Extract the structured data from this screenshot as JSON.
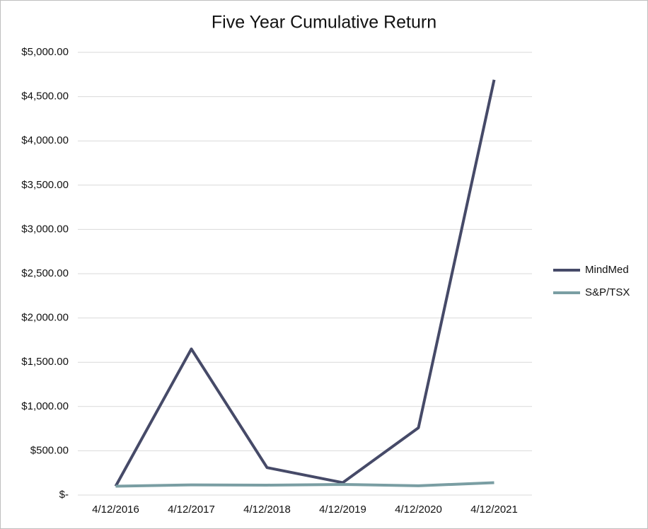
{
  "chart_data": {
    "type": "line",
    "title": "Five Year Cumulative Return",
    "categories": [
      "4/12/2016",
      "4/12/2017",
      "4/12/2018",
      "4/12/2019",
      "4/12/2020",
      "4/12/2021"
    ],
    "series": [
      {
        "name": "MindMed",
        "color": "#464a68",
        "values": [
          100,
          1650,
          310,
          140,
          760,
          4690
        ]
      },
      {
        "name": "S&P/TSX",
        "color": "#7a9ea3",
        "values": [
          100,
          115,
          112,
          120,
          105,
          140
        ]
      }
    ],
    "ylim": [
      0,
      5000
    ],
    "yticks": [
      {
        "value": 0,
        "label": "$-"
      },
      {
        "value": 500,
        "label": "$500.00"
      },
      {
        "value": 1000,
        "label": "$1,000.00"
      },
      {
        "value": 1500,
        "label": "$1,500.00"
      },
      {
        "value": 2000,
        "label": "$2,000.00"
      },
      {
        "value": 2500,
        "label": "$2,500.00"
      },
      {
        "value": 3000,
        "label": "$3,000.00"
      },
      {
        "value": 3500,
        "label": "$3,500.00"
      },
      {
        "value": 4000,
        "label": "$4,000.00"
      },
      {
        "value": 4500,
        "label": "$4,500.00"
      },
      {
        "value": 5000,
        "label": "$5,000.00"
      }
    ],
    "grid": true,
    "legend": "right"
  }
}
